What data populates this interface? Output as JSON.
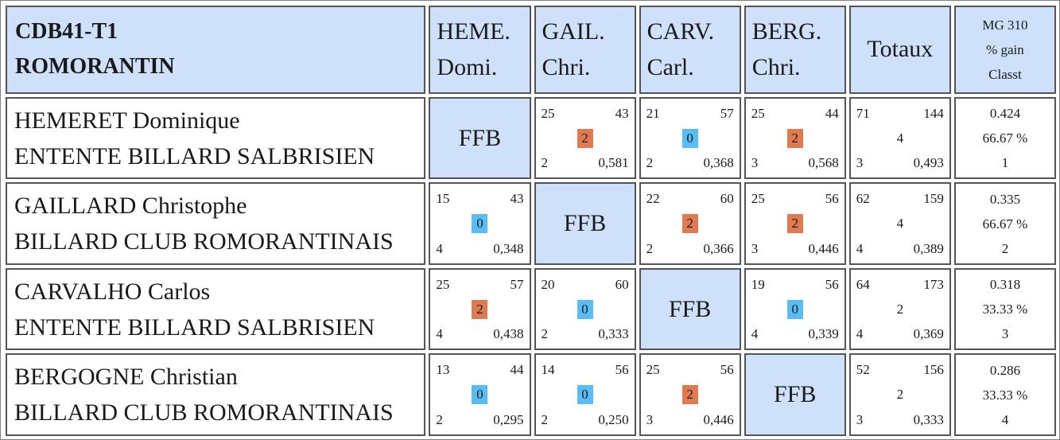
{
  "header": {
    "competition": "CDB41-T1",
    "location": "ROMORANTIN",
    "columns": [
      {
        "line1": "HEME.",
        "line2": "Domi."
      },
      {
        "line1": "GAIL.",
        "line2": "Chri."
      },
      {
        "line1": "CARV.",
        "line2": "Carl."
      },
      {
        "line1": "BERG.",
        "line2": "Chri."
      }
    ],
    "totals_label": "Totaux",
    "mg_label": "MG 310",
    "pct_label": "% gain",
    "rank_label": "Classt"
  },
  "ffb_label": "FFB",
  "colors": {
    "header_bg": "#cfe0fa",
    "win": "#e07a50",
    "loss": "#5abcf4"
  },
  "players": [
    {
      "name": "HEMERET Dominique",
      "club": "ENTENTE BILLARD SALBRISIEN",
      "cells": [
        null,
        {
          "tl": "25",
          "tr": "43",
          "pts": "2",
          "bl": "2",
          "br": "0,581"
        },
        {
          "tl": "21",
          "tr": "57",
          "pts": "0",
          "bl": "2",
          "br": "0,368"
        },
        {
          "tl": "25",
          "tr": "44",
          "pts": "2",
          "bl": "3",
          "br": "0,568"
        }
      ],
      "totals": {
        "tl": "71",
        "tr": "144",
        "pts": "4",
        "bl": "3",
        "br": "0,493"
      },
      "mg": "0.424",
      "pct": "66.67 %",
      "rank": "1"
    },
    {
      "name": "GAILLARD Christophe",
      "club": "BILLARD CLUB ROMORANTINAIS",
      "cells": [
        {
          "tl": "15",
          "tr": "43",
          "pts": "0",
          "bl": "4",
          "br": "0,348"
        },
        null,
        {
          "tl": "22",
          "tr": "60",
          "pts": "2",
          "bl": "2",
          "br": "0,366"
        },
        {
          "tl": "25",
          "tr": "56",
          "pts": "2",
          "bl": "3",
          "br": "0,446"
        }
      ],
      "totals": {
        "tl": "62",
        "tr": "159",
        "pts": "4",
        "bl": "4",
        "br": "0,389"
      },
      "mg": "0.335",
      "pct": "66.67 %",
      "rank": "2"
    },
    {
      "name": "CARVALHO Carlos",
      "club": "ENTENTE BILLARD SALBRISIEN",
      "cells": [
        {
          "tl": "25",
          "tr": "57",
          "pts": "2",
          "bl": "4",
          "br": "0,438"
        },
        {
          "tl": "20",
          "tr": "60",
          "pts": "0",
          "bl": "2",
          "br": "0,333"
        },
        null,
        {
          "tl": "19",
          "tr": "56",
          "pts": "0",
          "bl": "4",
          "br": "0,339"
        }
      ],
      "totals": {
        "tl": "64",
        "tr": "173",
        "pts": "2",
        "bl": "4",
        "br": "0,369"
      },
      "mg": "0.318",
      "pct": "33.33 %",
      "rank": "3"
    },
    {
      "name": "BERGOGNE Christian",
      "club": "BILLARD CLUB ROMORANTINAIS",
      "cells": [
        {
          "tl": "13",
          "tr": "44",
          "pts": "0",
          "bl": "2",
          "br": "0,295"
        },
        {
          "tl": "14",
          "tr": "56",
          "pts": "0",
          "bl": "2",
          "br": "0,250"
        },
        {
          "tl": "25",
          "tr": "56",
          "pts": "2",
          "bl": "3",
          "br": "0,446"
        },
        null
      ],
      "totals": {
        "tl": "52",
        "tr": "156",
        "pts": "2",
        "bl": "3",
        "br": "0,333"
      },
      "mg": "0.286",
      "pct": "33.33 %",
      "rank": "4"
    }
  ]
}
